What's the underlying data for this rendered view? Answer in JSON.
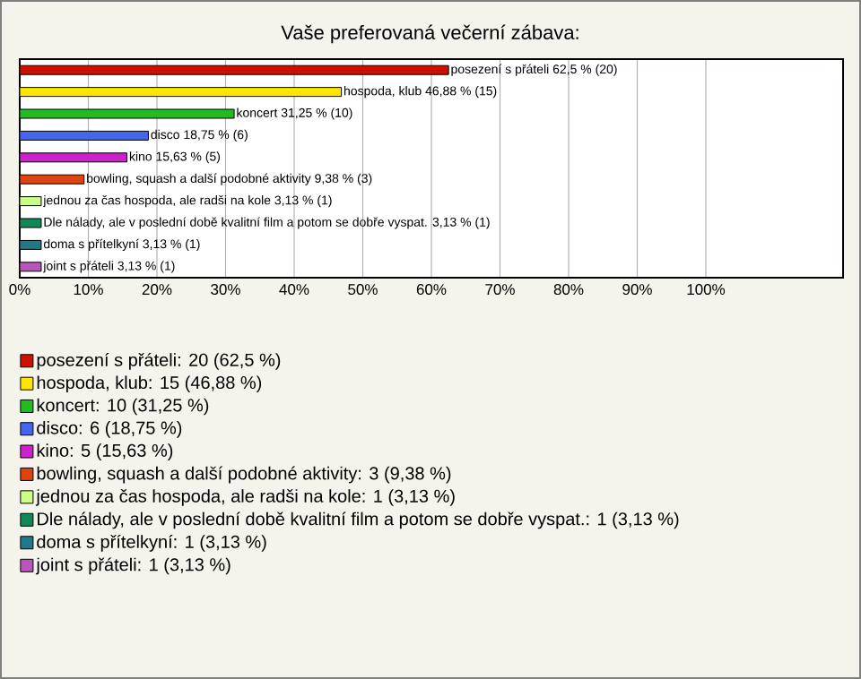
{
  "chart_data": {
    "type": "bar",
    "orientation": "horizontal",
    "title": "Vaše preferovaná večerní zábava:",
    "categories": [
      null,
      null,
      null,
      null,
      null,
      null,
      null,
      null,
      null,
      null
    ],
    "series": [
      {
        "name": "posezení s přáteli: 20 (62,5 %)",
        "color": "#cc1100",
        "values": [
          62.5,
          null,
          null,
          null,
          null,
          null,
          null,
          null,
          null,
          null
        ],
        "value_labels": [
          "posezení s přáteli 62,5 % (20)",
          null,
          null,
          null,
          null,
          null,
          null,
          null,
          null,
          null
        ]
      },
      {
        "name": "hospoda, klub: 15 (46,88 %)",
        "color": "#ffe600",
        "values": [
          null,
          46.88,
          null,
          null,
          null,
          null,
          null,
          null,
          null,
          null
        ],
        "value_labels": [
          null,
          "hospoda, klub 46,88 % (15)",
          null,
          null,
          null,
          null,
          null,
          null,
          null,
          null
        ]
      },
      {
        "name": "koncert: 10 (31,25 %)",
        "color": "#22bb22",
        "values": [
          null,
          null,
          31.25,
          null,
          null,
          null,
          null,
          null,
          null,
          null
        ],
        "value_labels": [
          null,
          null,
          "koncert 31,25 % (10)",
          null,
          null,
          null,
          null,
          null,
          null,
          null
        ]
      },
      {
        "name": "disco: 6 (18,75 %)",
        "color": "#4466ee",
        "values": [
          null,
          null,
          null,
          18.75,
          null,
          null,
          null,
          null,
          null,
          null
        ],
        "value_labels": [
          null,
          null,
          null,
          "disco 18,75 % (6)",
          null,
          null,
          null,
          null,
          null,
          null
        ]
      },
      {
        "name": "kino: 5 (15,63 %)",
        "color": "#cc22cc",
        "values": [
          null,
          null,
          null,
          null,
          15.63,
          null,
          null,
          null,
          null,
          null
        ],
        "value_labels": [
          null,
          null,
          null,
          null,
          "kino 15,63 % (5)",
          null,
          null,
          null,
          null,
          null
        ]
      },
      {
        "name": "bowling, squash a další podobné aktivity: 3 (9,38 %)",
        "color": "#dd4411",
        "values": [
          null,
          null,
          null,
          null,
          null,
          9.38,
          null,
          null,
          null,
          null
        ],
        "value_labels": [
          null,
          null,
          null,
          null,
          null,
          "bowling, squash a další podobné aktivity 9,38 % (3)",
          null,
          null,
          null,
          null
        ]
      },
      {
        "name": "jednou za čas hospoda, ale radši na kole: 1 (3,13 %)",
        "color": "#ccff88",
        "values": [
          null,
          null,
          null,
          null,
          null,
          null,
          3.13,
          null,
          null,
          null
        ],
        "value_labels": [
          null,
          null,
          null,
          null,
          null,
          null,
          "jednou za čas hospoda, ale radši na kole 3,13 % (1)",
          null,
          null,
          null
        ]
      },
      {
        "name": "Dle nálady, ale v poslední době kvalitní film a potom se dobře vyspat.: 1 (3,13 %)",
        "color": "#118855",
        "values": [
          null,
          null,
          null,
          null,
          null,
          null,
          null,
          3.13,
          null,
          null
        ],
        "value_labels": [
          null,
          null,
          null,
          null,
          null,
          null,
          null,
          "Dle nálady, ale v poslední době kvalitní film a potom se dobře vyspat. 3,13 % (1)",
          null,
          null
        ]
      },
      {
        "name": "doma s přítelkyní: 1 (3,13 %)",
        "color": "#227788",
        "values": [
          null,
          null,
          null,
          null,
          null,
          null,
          null,
          null,
          3.13,
          null
        ],
        "value_labels": [
          null,
          null,
          null,
          null,
          null,
          null,
          null,
          null,
          "doma s přítelkyní 3,13 % (1)",
          null
        ]
      },
      {
        "name": "joint s přáteli: 1 (3,13 %)",
        "color": "#bb55bb",
        "values": [
          null,
          null,
          null,
          null,
          null,
          null,
          null,
          null,
          null,
          3.13
        ],
        "value_labels": [
          null,
          null,
          null,
          null,
          null,
          null,
          null,
          null,
          null,
          "joint s přáteli 3,13 % (1)"
        ]
      }
    ],
    "xlim": [
      0,
      120
    ],
    "xticks": [
      {
        "value": 0,
        "label": "0%"
      },
      {
        "value": 10,
        "label": "10%"
      },
      {
        "value": 20,
        "label": "20%"
      },
      {
        "value": 30,
        "label": "30%"
      },
      {
        "value": 40,
        "label": "40%"
      },
      {
        "value": 50,
        "label": "50%"
      },
      {
        "value": 60,
        "label": "60%"
      },
      {
        "value": 70,
        "label": "70%"
      },
      {
        "value": 80,
        "label": "80%"
      },
      {
        "value": 90,
        "label": "90%"
      },
      {
        "value": 100,
        "label": "100%"
      }
    ],
    "grid": "x",
    "legend": "bottom"
  }
}
